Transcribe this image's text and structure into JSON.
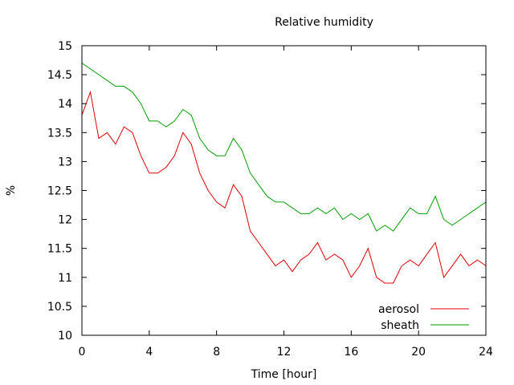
{
  "chart_data": {
    "type": "line",
    "title": "Relative humidity",
    "xlabel": "Time [hour]",
    "ylabel": "%",
    "xlim": [
      0,
      24
    ],
    "ylim": [
      10,
      15
    ],
    "xticks": [
      0,
      4,
      8,
      12,
      16,
      20,
      24
    ],
    "yticks": [
      10,
      10.5,
      11,
      11.5,
      12,
      12.5,
      13,
      13.5,
      14,
      14.5,
      15
    ],
    "grid": false,
    "legend_position": "bottom-right",
    "series": [
      {
        "name": "aerosol",
        "color": "#e00000",
        "x": [
          0,
          0.5,
          1,
          1.5,
          2,
          2.5,
          3,
          3.5,
          4,
          4.5,
          5,
          5.5,
          6,
          6.5,
          7,
          7.5,
          8,
          8.5,
          9,
          9.5,
          10,
          10.5,
          11,
          11.5,
          12,
          12.5,
          13,
          13.5,
          14,
          14.5,
          15,
          15.5,
          16,
          16.5,
          17,
          17.5,
          18,
          18.5,
          19,
          19.5,
          20,
          20.5,
          21,
          21.5,
          22,
          22.5,
          23,
          23.5,
          24
        ],
        "y": [
          13.8,
          14.2,
          13.4,
          13.5,
          13.3,
          13.6,
          13.5,
          13.1,
          12.8,
          12.8,
          12.9,
          13.1,
          13.5,
          13.3,
          12.8,
          12.5,
          12.3,
          12.2,
          12.6,
          12.4,
          11.8,
          11.6,
          11.4,
          11.2,
          11.3,
          11.1,
          11.3,
          11.4,
          11.6,
          11.3,
          11.4,
          11.3,
          11.0,
          11.2,
          11.5,
          11.0,
          10.9,
          10.9,
          11.2,
          11.3,
          11.2,
          11.4,
          11.6,
          11.0,
          11.2,
          11.4,
          11.2,
          11.3,
          11.2
        ]
      },
      {
        "name": "sheath",
        "color": "#00a000",
        "x": [
          0,
          0.5,
          1,
          1.5,
          2,
          2.5,
          3,
          3.5,
          4,
          4.5,
          5,
          5.5,
          6,
          6.5,
          7,
          7.5,
          8,
          8.5,
          9,
          9.5,
          10,
          10.5,
          11,
          11.5,
          12,
          12.5,
          13,
          13.5,
          14,
          14.5,
          15,
          15.5,
          16,
          16.5,
          17,
          17.5,
          18,
          18.5,
          19,
          19.5,
          20,
          20.5,
          21,
          21.5,
          22,
          22.5,
          23,
          23.5,
          24
        ],
        "y": [
          14.7,
          14.6,
          14.5,
          14.4,
          14.3,
          14.3,
          14.2,
          14.0,
          13.7,
          13.7,
          13.6,
          13.7,
          13.9,
          13.8,
          13.4,
          13.2,
          13.1,
          13.1,
          13.4,
          13.2,
          12.8,
          12.6,
          12.4,
          12.3,
          12.3,
          12.2,
          12.1,
          12.1,
          12.2,
          12.1,
          12.2,
          12.0,
          12.1,
          12.0,
          12.1,
          11.8,
          11.9,
          11.8,
          12.0,
          12.2,
          12.1,
          12.1,
          12.4,
          12.0,
          11.9,
          12.0,
          12.1,
          12.2,
          12.3
        ]
      }
    ]
  }
}
